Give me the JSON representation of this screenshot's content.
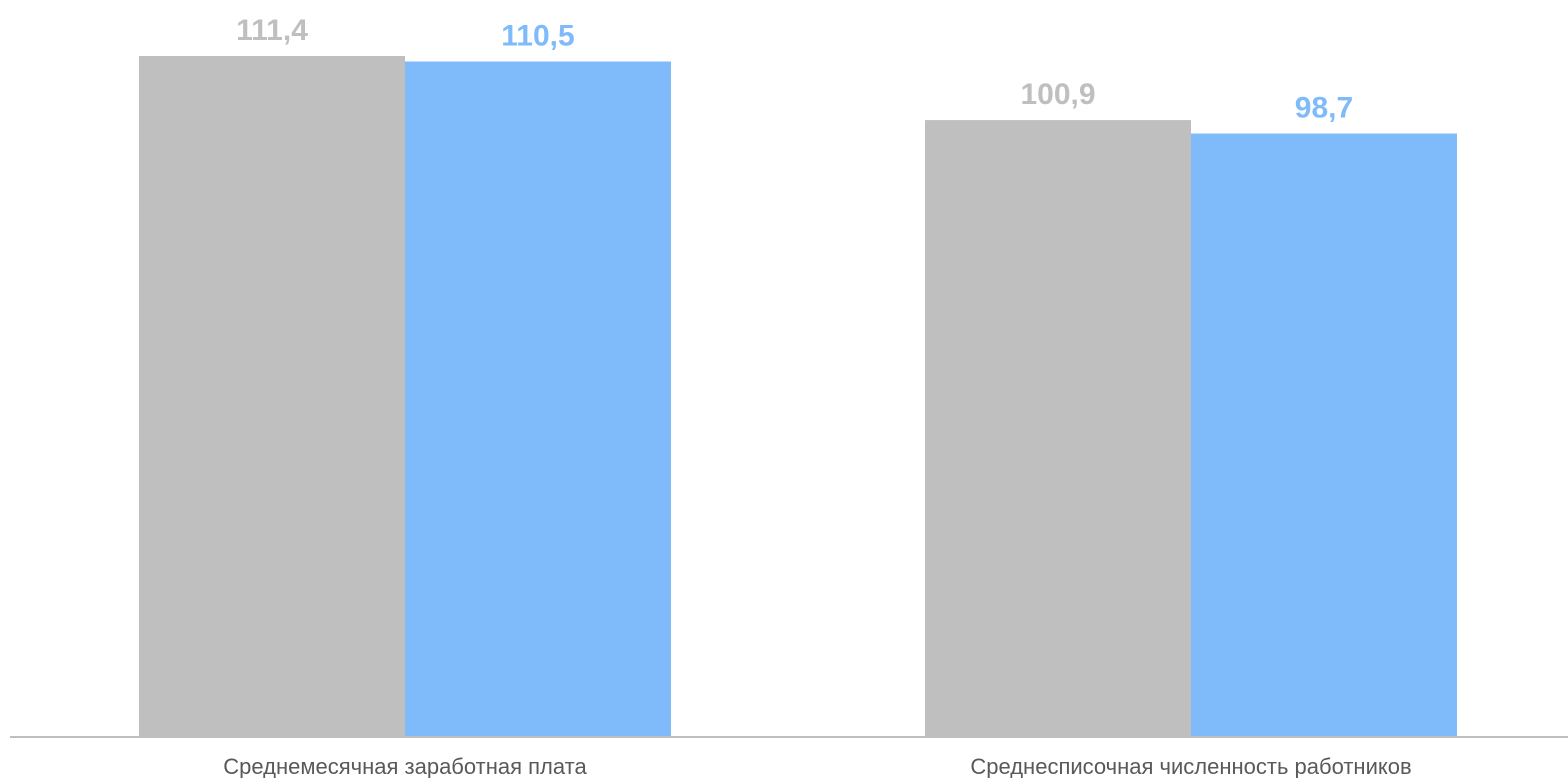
{
  "chart_data": {
    "type": "bar",
    "categories": [
      "Среднемесячная заработная плата",
      "Среднесписочная численность работников"
    ],
    "series": [
      {
        "color": "#bfbfbf",
        "label_color": "#bfbfbf",
        "values": [
          111.4,
          100.9
        ],
        "value_labels": [
          "111,4",
          "100,9"
        ]
      },
      {
        "color": "#7fbbfb",
        "label_color": "#7fbbfb",
        "values": [
          110.5,
          98.7
        ],
        "value_labels": [
          "110,5",
          "98,7"
        ]
      }
    ],
    "ylim": [
      0,
      111.4
    ],
    "grid": false,
    "legend": "none",
    "axis_color": "#bfbfbf"
  }
}
